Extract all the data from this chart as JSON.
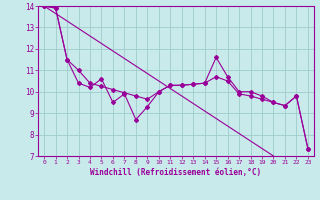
{
  "xlabel": "Windchill (Refroidissement éolien,°C)",
  "bg_color": "#c8eaea",
  "grid_color": "#a0cccc",
  "line_color": "#990099",
  "x_data": [
    0,
    1,
    2,
    3,
    4,
    5,
    6,
    7,
    8,
    9,
    10,
    11,
    12,
    13,
    14,
    15,
    16,
    17,
    18,
    19,
    20,
    21,
    22,
    23
  ],
  "y_jagged": [
    14.0,
    13.9,
    11.5,
    10.4,
    10.2,
    10.6,
    9.5,
    9.9,
    8.7,
    9.3,
    10.0,
    10.3,
    10.3,
    10.35,
    10.4,
    11.6,
    10.7,
    10.0,
    10.0,
    9.8,
    9.5,
    9.35,
    9.8,
    7.35
  ],
  "y_smooth": [
    14.0,
    13.9,
    11.5,
    11.0,
    10.4,
    10.25,
    10.1,
    9.95,
    9.8,
    9.65,
    10.0,
    10.3,
    10.3,
    10.35,
    10.4,
    10.7,
    10.5,
    9.9,
    9.8,
    9.65,
    9.5,
    9.35,
    9.8,
    7.35
  ],
  "y_trend": [
    14.0,
    13.65,
    13.3,
    12.95,
    12.6,
    12.25,
    11.9,
    11.55,
    11.2,
    10.85,
    10.5,
    10.15,
    9.8,
    9.45,
    9.1,
    8.75,
    8.4,
    8.05,
    7.7,
    7.35,
    7.0,
    6.65,
    6.3,
    5.95
  ],
  "ylim": [
    7,
    14
  ],
  "xlim": [
    -0.5,
    23.5
  ],
  "yticks": [
    7,
    8,
    9,
    10,
    11,
    12,
    13,
    14
  ]
}
